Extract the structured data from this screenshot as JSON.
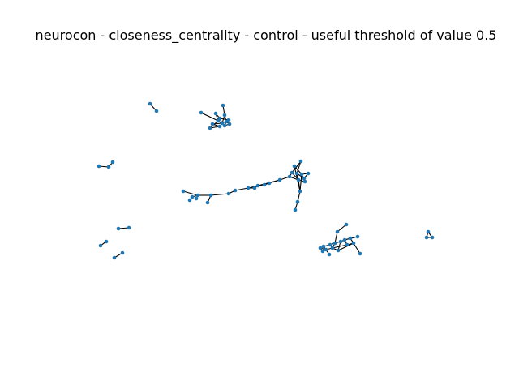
{
  "title": "neurocon - closeness_centrality - control - useful threshold of value 0.5",
  "colors": {
    "node": "#1f77b4",
    "edge": "#000000",
    "background": "#ffffff"
  }
}
